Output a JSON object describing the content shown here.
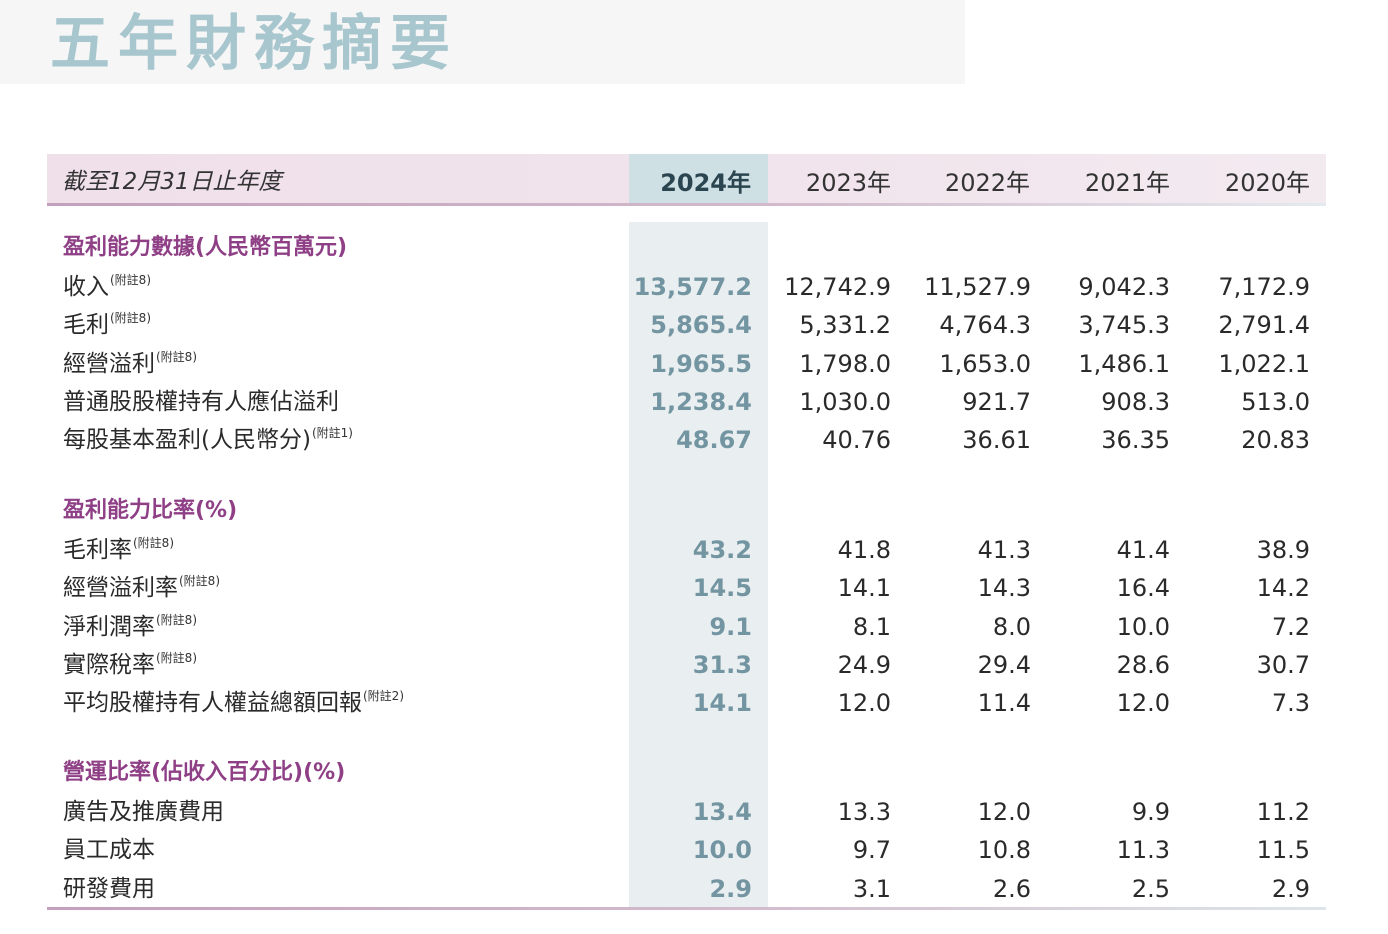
{
  "title": "五年財務摘要",
  "header": {
    "label": "截至12月31日止年度",
    "years": [
      "2024年",
      "2023年",
      "2022年",
      "2021年",
      "2020年"
    ]
  },
  "sections": [
    {
      "title": "盈利能力數據(人民幣百萬元)",
      "rows": [
        {
          "label": "收入",
          "note": "(附註8)",
          "values": [
            "13,577.2",
            "12,742.9",
            "11,527.9",
            "9,042.3",
            "7,172.9"
          ]
        },
        {
          "label": "毛利",
          "note": "(附註8)",
          "values": [
            "5,865.4",
            "5,331.2",
            "4,764.3",
            "3,745.3",
            "2,791.4"
          ]
        },
        {
          "label": "經營溢利",
          "note": "(附註8)",
          "values": [
            "1,965.5",
            "1,798.0",
            "1,653.0",
            "1,486.1",
            "1,022.1"
          ]
        },
        {
          "label": "普通股股權持有人應佔溢利",
          "note": "",
          "values": [
            "1,238.4",
            "1,030.0",
            "921.7",
            "908.3",
            "513.0"
          ]
        },
        {
          "label": "每股基本盈利(人民幣分)",
          "note": "(附註1)",
          "values": [
            "48.67",
            "40.76",
            "36.61",
            "36.35",
            "20.83"
          ]
        }
      ]
    },
    {
      "title": "盈利能力比率(%)",
      "rows": [
        {
          "label": "毛利率",
          "note": "(附註8)",
          "values": [
            "43.2",
            "41.8",
            "41.3",
            "41.4",
            "38.9"
          ]
        },
        {
          "label": "經營溢利率",
          "note": "(附註8)",
          "values": [
            "14.5",
            "14.1",
            "14.3",
            "16.4",
            "14.2"
          ]
        },
        {
          "label": "淨利潤率",
          "note": "(附註8)",
          "values": [
            "9.1",
            "8.1",
            "8.0",
            "10.0",
            "7.2"
          ]
        },
        {
          "label": "實際稅率",
          "note": "(附註8)",
          "values": [
            "31.3",
            "24.9",
            "29.4",
            "28.6",
            "30.7"
          ]
        },
        {
          "label": "平均股權持有人權益總額回報",
          "note": "(附註2)",
          "values": [
            "14.1",
            "12.0",
            "11.4",
            "12.0",
            "7.3"
          ]
        }
      ]
    },
    {
      "title": "營運比率(佔收入百分比)(%)",
      "rows": [
        {
          "label": "廣告及推廣費用",
          "note": "",
          "values": [
            "13.4",
            "13.3",
            "12.0",
            "9.9",
            "11.2"
          ]
        },
        {
          "label": "員工成本",
          "note": "",
          "values": [
            "10.0",
            "9.7",
            "10.8",
            "11.3",
            "11.5"
          ]
        },
        {
          "label": "研發費用",
          "note": "",
          "values": [
            "2.9",
            "3.1",
            "2.6",
            "2.5",
            "2.9"
          ]
        }
      ]
    }
  ]
}
